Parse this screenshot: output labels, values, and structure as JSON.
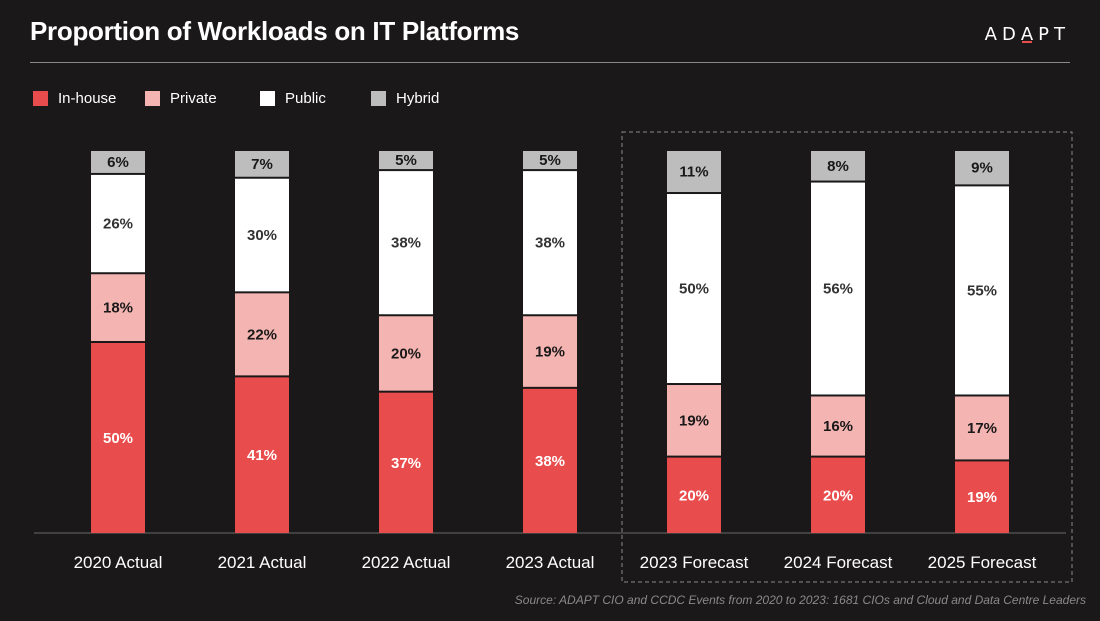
{
  "title": "Proportion of Workloads on IT Platforms",
  "logo": {
    "left": "AD",
    "accent": "A",
    "right": "PT"
  },
  "legend": [
    {
      "label": "In-house",
      "color": "#e84c4c"
    },
    {
      "label": "Private",
      "color": "#f3b4b2"
    },
    {
      "label": "Public",
      "color": "#ffffff"
    },
    {
      "label": "Hybrid",
      "color": "#bdbdbd"
    }
  ],
  "source": "Source: ADAPT CIO and CCDC Events from 2020 to 2023: 1681 CIOs and Cloud and Data Centre Leaders",
  "chart_data": {
    "type": "bar",
    "stacked": true,
    "categories": [
      "2020 Actual",
      "2021 Actual",
      "2022 Actual",
      "2023 Actual",
      "2023 Forecast",
      "2024 Forecast",
      "2025 Forecast"
    ],
    "forecast_group": [
      "2023 Forecast",
      "2024 Forecast",
      "2025 Forecast"
    ],
    "series": [
      {
        "name": "In-house",
        "color": "#e84c4c",
        "label_color": "#ffffff",
        "values": [
          50,
          41,
          37,
          38,
          20,
          20,
          19
        ],
        "labels": [
          "50%",
          "41%",
          "37%",
          "38%",
          "20%",
          "20%",
          "19%"
        ]
      },
      {
        "name": "Private",
        "color": "#f3b4b2",
        "label_color": "#1a1818",
        "values": [
          18,
          22,
          20,
          19,
          19,
          16,
          17
        ],
        "labels": [
          "18%",
          "22%",
          "20%",
          "19%",
          "19%",
          "16%",
          "17%"
        ]
      },
      {
        "name": "Public",
        "color": "#ffffff",
        "label_color": "#333333",
        "values": [
          26,
          30,
          38,
          38,
          50,
          56,
          55
        ],
        "labels": [
          "26%",
          "30%",
          "38%",
          "38%",
          "50%",
          "56%",
          "55%"
        ]
      },
      {
        "name": "Hybrid",
        "color": "#bdbdbd",
        "label_color": "#1a1818",
        "values": [
          6,
          7,
          5,
          5,
          11,
          8,
          9
        ],
        "labels": [
          "6%",
          "7%",
          "5%",
          "5%",
          "11%",
          "8%",
          "9%"
        ]
      }
    ],
    "ylim": [
      0,
      100
    ],
    "legend_position": "top-left",
    "grid": false
  }
}
